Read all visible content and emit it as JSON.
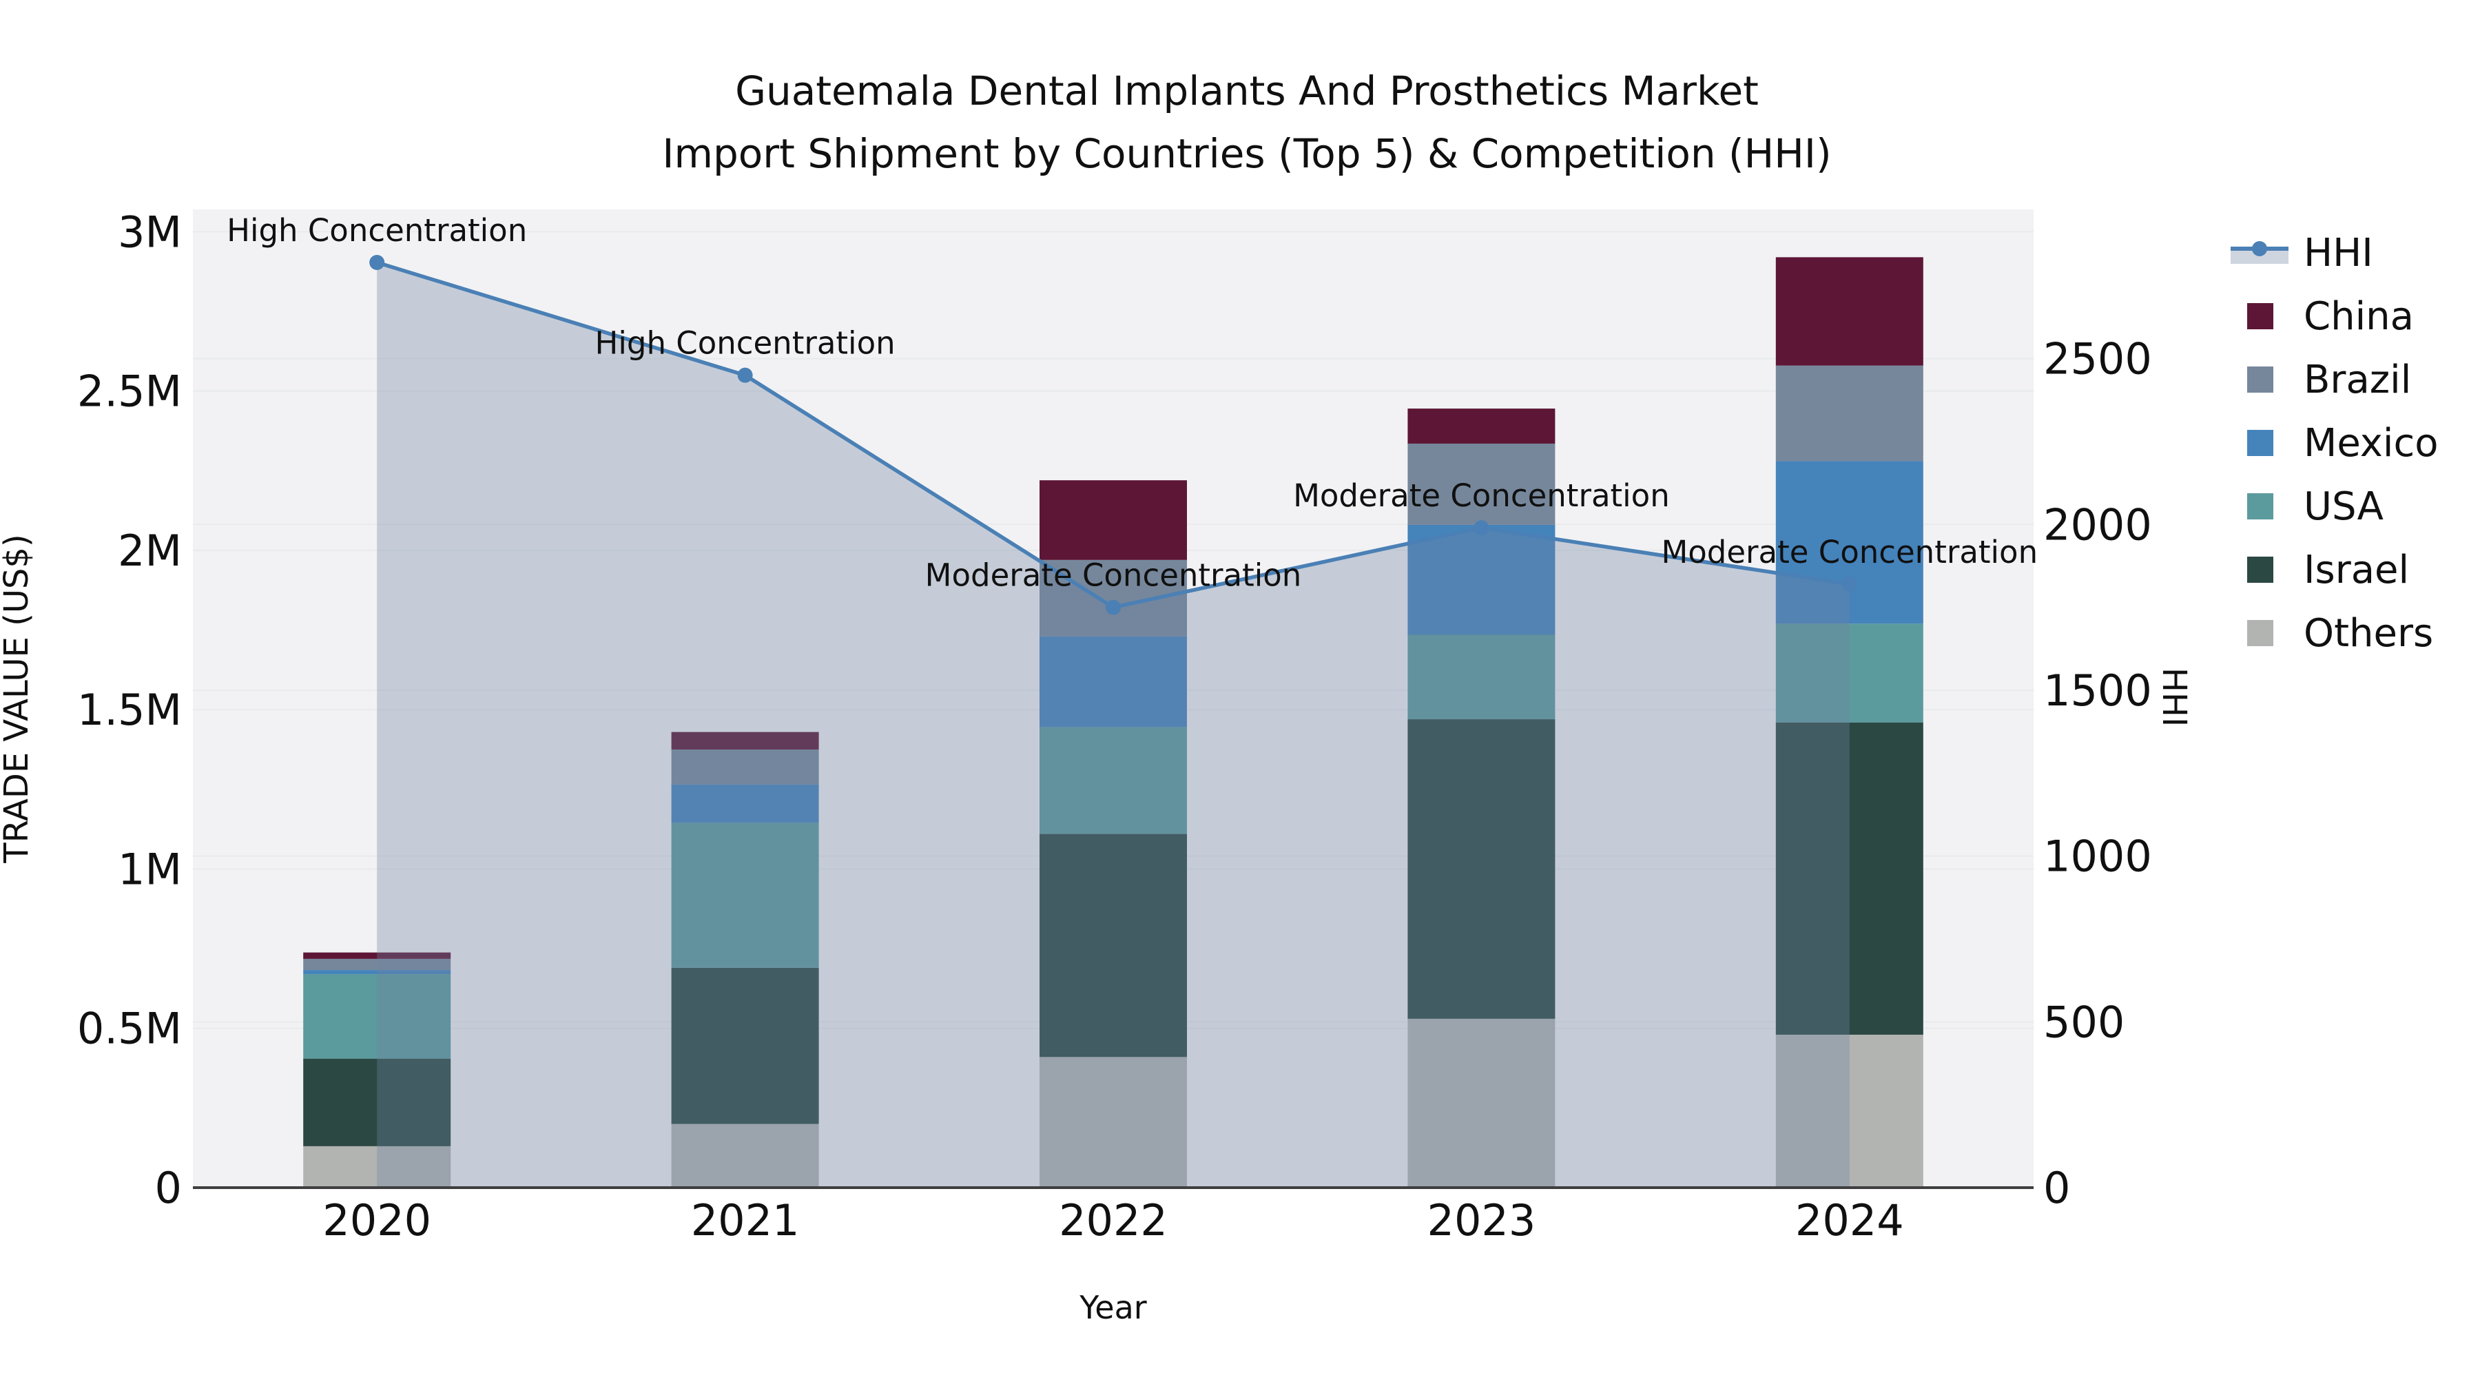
{
  "title": {
    "line1": "Guatemala Dental Implants And Prosthetics Market",
    "line2": "Import Shipment by Countries (Top 5) & Competition (HHI)"
  },
  "chart_data": {
    "type": "combo: stacked bar (trade value, left axis) + line/area (HHI, right axis)",
    "x": [
      "2020",
      "2021",
      "2022",
      "2023",
      "2024"
    ],
    "xlabel": "Year",
    "y_left": {
      "label": "TRADE VALUE (US$)",
      "max": 3070000,
      "ticks": [
        {
          "value": 0,
          "label": "0"
        },
        {
          "value": 500000,
          "label": "0.5M"
        },
        {
          "value": 1000000,
          "label": "1M"
        },
        {
          "value": 1500000,
          "label": "1.5M"
        },
        {
          "value": 2000000,
          "label": "2M"
        },
        {
          "value": 2500000,
          "label": "2.5M"
        },
        {
          "value": 3000000,
          "label": "3M"
        }
      ]
    },
    "y_right": {
      "label": "HHI",
      "max": 2950,
      "ticks": [
        {
          "value": 0,
          "label": "0"
        },
        {
          "value": 500,
          "label": "500"
        },
        {
          "value": 1000,
          "label": "1000"
        },
        {
          "value": 1500,
          "label": "1500"
        },
        {
          "value": 2000,
          "label": "2000"
        },
        {
          "value": 2500,
          "label": "2500"
        }
      ]
    },
    "bar_series": [
      {
        "name": "Others",
        "color": "#b2b4b2",
        "values": [
          130000,
          200000,
          410000,
          530000,
          480000
        ]
      },
      {
        "name": "Israel",
        "color": "#2b4843",
        "values": [
          275000,
          490000,
          700000,
          940000,
          980000
        ]
      },
      {
        "name": "USA",
        "color": "#5b9a9d",
        "values": [
          265000,
          455000,
          335000,
          265000,
          310000
        ]
      },
      {
        "name": "Mexico",
        "color": "#4583bb",
        "values": [
          13000,
          120000,
          285000,
          345000,
          510000
        ]
      },
      {
        "name": "Brazil",
        "color": "#76879b",
        "values": [
          35000,
          110000,
          240000,
          255000,
          300000
        ]
      },
      {
        "name": "China",
        "color": "#5d1636",
        "values": [
          20000,
          55000,
          250000,
          110000,
          340000
        ]
      }
    ],
    "line_series": {
      "name": "HHI",
      "color": "#4a80b5",
      "area_fill": "rgba(110,133,160,0.34)",
      "values": [
        2790,
        2450,
        1750,
        1990,
        1820
      ]
    },
    "annotations": [
      {
        "x": "2020",
        "text": "High Concentration"
      },
      {
        "x": "2021",
        "text": "High Concentration"
      },
      {
        "x": "2022",
        "text": "Moderate Concentration"
      },
      {
        "x": "2023",
        "text": "Moderate Concentration"
      },
      {
        "x": "2024",
        "text": "Moderate Concentration"
      }
    ],
    "legend": [
      "HHI",
      "China",
      "Brazil",
      "Mexico",
      "USA",
      "Israel",
      "Others"
    ],
    "layout_hints": {
      "grid": "horizontal, both axes",
      "legend_position": "right",
      "plot_bg": "#f2f2f4"
    }
  },
  "colors": {
    "plot_bg": "#f2f2f4",
    "grid": "#e9eaec",
    "axis_line": "#3f3f3f",
    "text": "#101010"
  }
}
